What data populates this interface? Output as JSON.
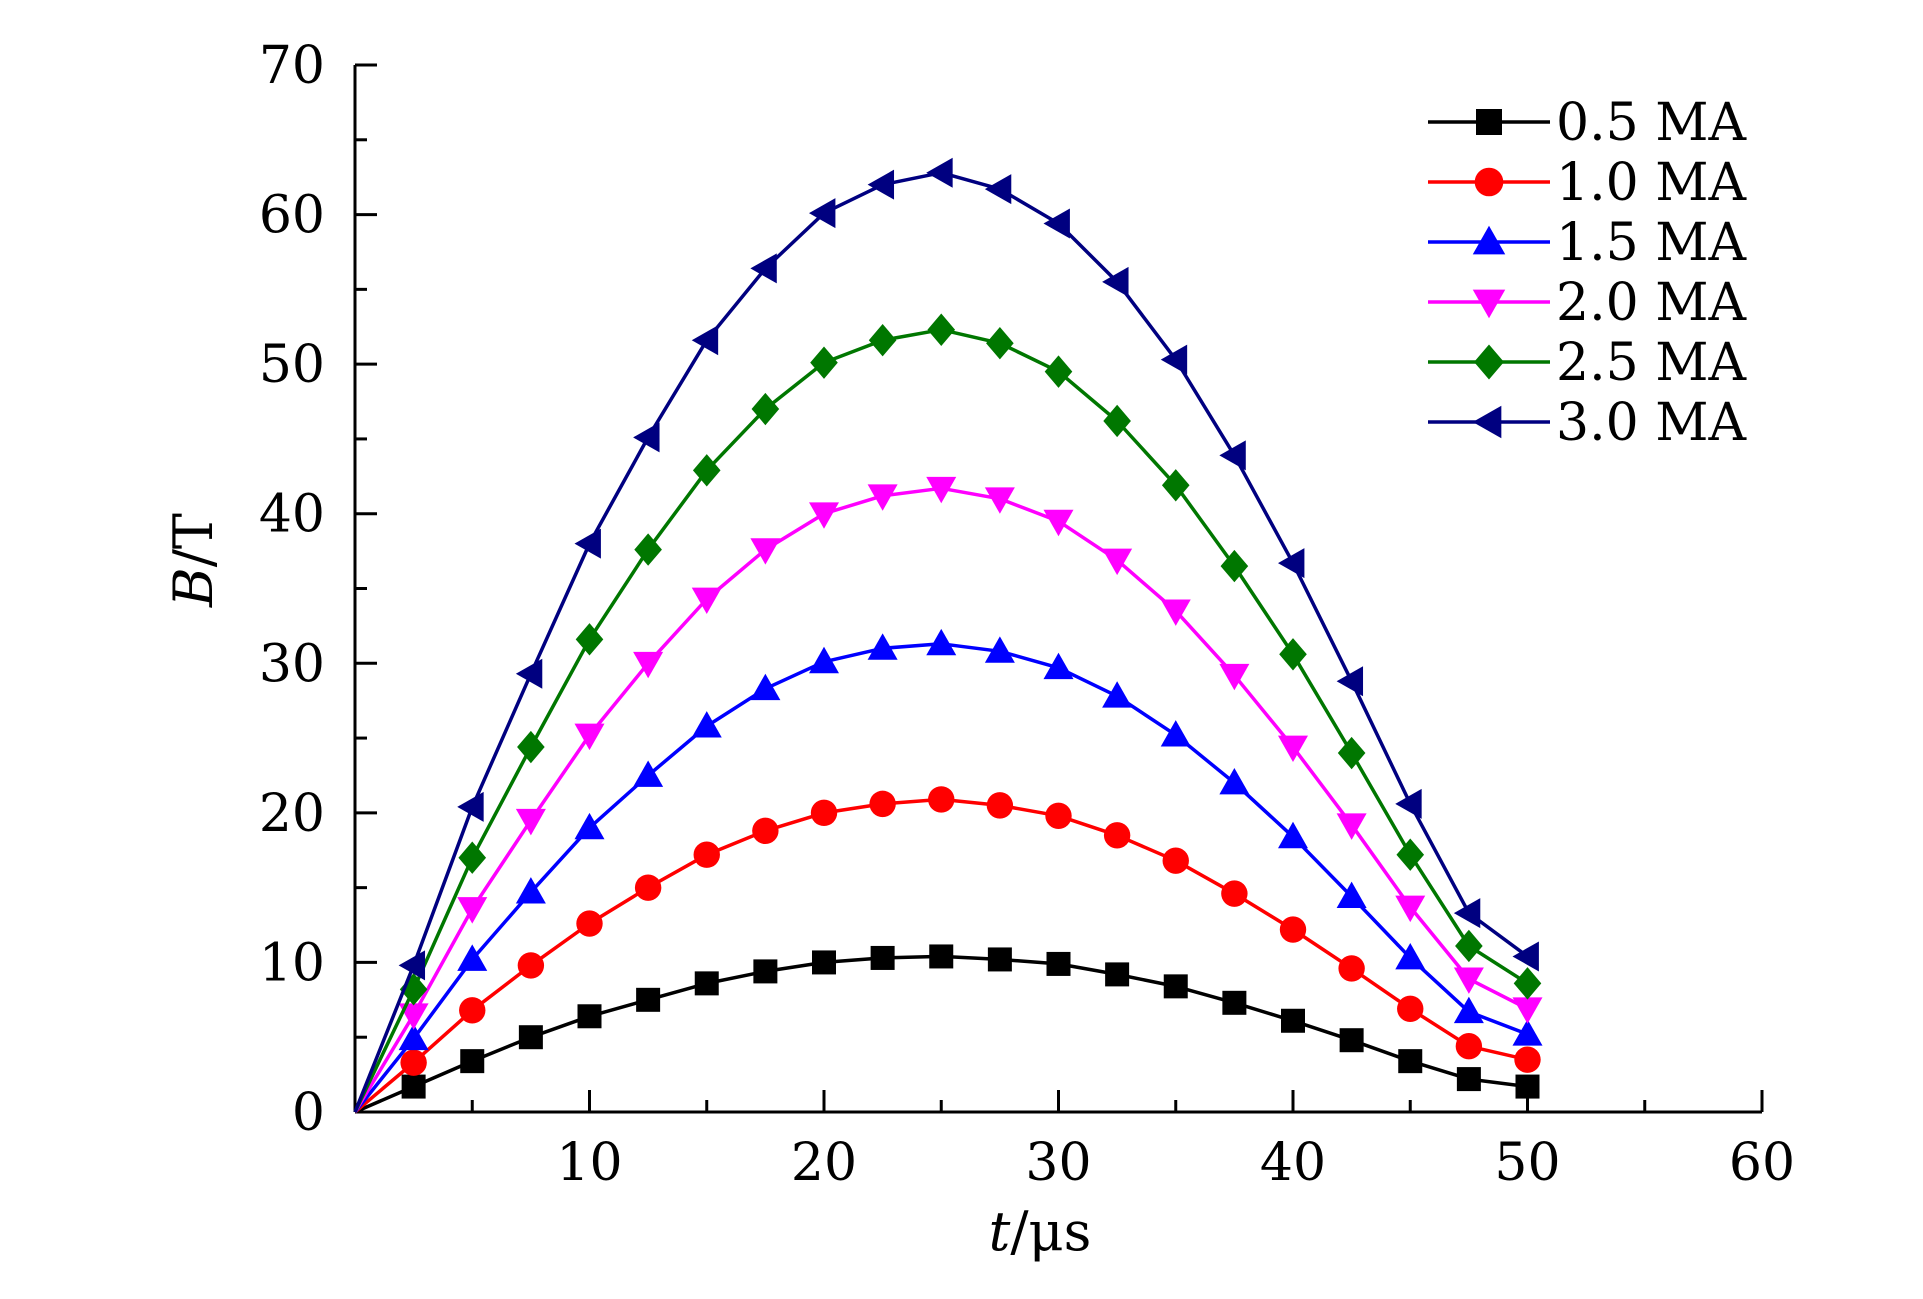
{
  "chart_data": {
    "type": "line",
    "title": "",
    "xlabel_var": "t",
    "xlabel_unit": "/μs",
    "ylabel_var": "B",
    "ylabel_unit": "/T",
    "xlim": [
      0,
      60
    ],
    "ylim": [
      0,
      70
    ],
    "xticks": [
      10,
      20,
      30,
      40,
      50,
      60
    ],
    "yticks": [
      0,
      10,
      20,
      30,
      40,
      50,
      60,
      70
    ],
    "grid": false,
    "legend_position": "top-right",
    "x": [
      0,
      2.5,
      5,
      7.5,
      10,
      12.5,
      15,
      17.5,
      20,
      22.5,
      25,
      27.5,
      30,
      32.5,
      35,
      37.5,
      40,
      42.5,
      45,
      47.5,
      50
    ],
    "series": [
      {
        "name": "0.5 MA",
        "color": "#000000",
        "marker": "square",
        "values": [
          0,
          1.7,
          3.4,
          5.0,
          6.4,
          7.5,
          8.6,
          9.4,
          10.0,
          10.3,
          10.4,
          10.2,
          9.9,
          9.2,
          8.4,
          7.3,
          6.1,
          4.8,
          3.4,
          2.2,
          1.7
        ]
      },
      {
        "name": "1.0 MA",
        "color": "#ff0000",
        "marker": "circle",
        "values": [
          0,
          3.3,
          6.8,
          9.8,
          12.6,
          15.0,
          17.2,
          18.8,
          20.0,
          20.6,
          20.9,
          20.5,
          19.8,
          18.5,
          16.8,
          14.6,
          12.2,
          9.6,
          6.9,
          4.4,
          3.5
        ]
      },
      {
        "name": "1.5 MA",
        "color": "#0000ff",
        "marker": "triangle-up",
        "values": [
          0,
          4.9,
          10.2,
          14.7,
          19.0,
          22.5,
          25.8,
          28.3,
          30.1,
          31.0,
          31.3,
          30.8,
          29.7,
          27.8,
          25.2,
          22.0,
          18.4,
          14.4,
          10.3,
          6.7,
          5.2
        ]
      },
      {
        "name": "2.0 MA",
        "color": "#ff00ff",
        "marker": "triangle-down",
        "values": [
          0,
          6.5,
          13.6,
          19.5,
          25.2,
          30.0,
          34.3,
          37.6,
          40.0,
          41.2,
          41.7,
          41.0,
          39.5,
          36.9,
          33.5,
          29.2,
          24.4,
          19.2,
          13.7,
          8.9,
          6.9
        ]
      },
      {
        "name": "2.5 MA",
        "color": "#007700",
        "marker": "diamond",
        "values": [
          0,
          8.2,
          17.0,
          24.4,
          31.6,
          37.6,
          42.9,
          47.0,
          50.1,
          51.6,
          52.3,
          51.4,
          49.5,
          46.2,
          41.9,
          36.5,
          30.6,
          24.0,
          17.2,
          11.1,
          8.6
        ]
      },
      {
        "name": "3.0 MA",
        "color": "#000080",
        "marker": "triangle-left",
        "values": [
          0,
          9.8,
          20.4,
          29.3,
          38.0,
          45.1,
          51.6,
          56.4,
          60.1,
          62.0,
          62.8,
          61.7,
          59.4,
          55.5,
          50.3,
          43.9,
          36.7,
          28.8,
          20.6,
          13.3,
          10.4
        ]
      }
    ]
  }
}
